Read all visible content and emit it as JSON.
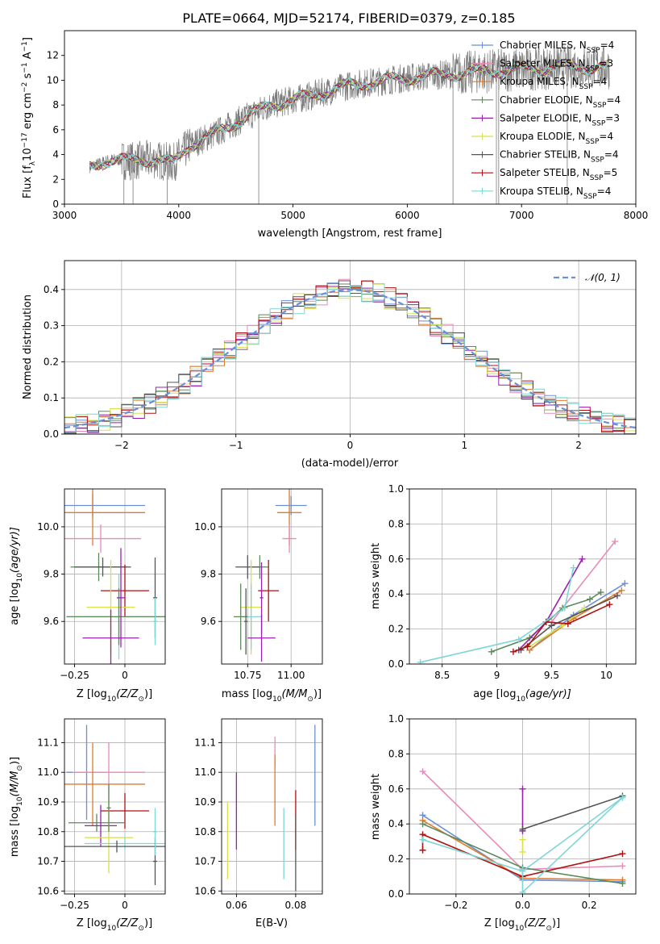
{
  "title": "PLATE=0664, MJD=52174, FIBERID=0379, z=0.185",
  "colors": {
    "chabrier_miles": "#6a8fd8",
    "salpeter_miles": "#e98ab8",
    "kroupa_miles": "#e07b2a",
    "chabrier_elodie": "#5a8a5a",
    "salpeter_elodie": "#9b1fae",
    "kroupa_elodie": "#d8e04a",
    "chabrier_stelib": "#555555",
    "salpeter_stelib": "#b01010",
    "kroupa_stelib": "#7fd6d6"
  },
  "chart_data": [
    {
      "id": "spectrum",
      "type": "line",
      "xlabel": "wavelength [Angstrom, rest frame]",
      "ylabel": "Flux [f",
      "ylabel_sub": "λ",
      "ylabel_rest": "10",
      "ylabel_exp": "−17",
      "ylabel_end": " erg cm",
      "ylabel_e2": "−2",
      "ylabel_s": " s",
      "ylabel_e1": "−1",
      "ylabel_a": " A",
      "ylabel_e3": "−1",
      "ylabel_close": "]",
      "xlim": [
        3000,
        8000
      ],
      "ylim": [
        0,
        14
      ],
      "xticks": [
        3000,
        4000,
        5000,
        6000,
        7000,
        8000
      ],
      "yticks": [
        0,
        2,
        4,
        6,
        8,
        10,
        12
      ],
      "data_range": [
        3220,
        7770
      ],
      "legend_position": "upper-right",
      "legend": [
        {
          "base": "Chabrier MILES, N",
          "sub": "SSP",
          "tail": "=4",
          "color_key": "chabrier_miles"
        },
        {
          "base": "Salpeter MILES, N",
          "sub": "SSP",
          "tail": "=3",
          "color_key": "salpeter_miles"
        },
        {
          "base": "Kroupa MILES, N",
          "sub": "SSP",
          "tail": "=4",
          "color_key": "kroupa_miles"
        },
        {
          "base": "Chabrier ELODIE, N",
          "sub": "SSP",
          "tail": "=4",
          "color_key": "chabrier_elodie"
        },
        {
          "base": "Salpeter ELODIE, N",
          "sub": "SSP",
          "tail": "=3",
          "color_key": "salpeter_elodie"
        },
        {
          "base": "Kroupa ELODIE, N",
          "sub": "SSP",
          "tail": "=4",
          "color_key": "kroupa_elodie"
        },
        {
          "base": "Chabrier STELIB, N",
          "sub": "SSP",
          "tail": "=4",
          "color_key": "chabrier_stelib"
        },
        {
          "base": "Salpeter STELIB, N",
          "sub": "SSP",
          "tail": "=5",
          "color_key": "salpeter_stelib"
        },
        {
          "base": "Kroupa STELIB, N",
          "sub": "SSP",
          "tail": "=4",
          "color_key": "kroupa_stelib"
        }
      ],
      "continuum_x": [
        3220,
        3400,
        3600,
        3800,
        3950,
        4100,
        4300,
        4500,
        4800,
        5100,
        5500,
        6000,
        6500,
        7000,
        7500,
        7770
      ],
      "continuum_y": [
        3.0,
        3.6,
        3.5,
        3.6,
        3.3,
        4.8,
        5.6,
        6.6,
        8.0,
        8.6,
        9.6,
        10.2,
        10.6,
        10.9,
        11.1,
        11.0
      ],
      "gap_x": [
        3520,
        3600,
        3900,
        4700,
        6400,
        6780,
        6800,
        7400
      ]
    },
    {
      "id": "residuals",
      "type": "histogram",
      "xlabel": "(data-model)/error",
      "ylabel": "Normed distribution",
      "xlim": [
        -2.5,
        2.5
      ],
      "ylim": [
        0,
        0.48
      ],
      "xticks": [
        -2,
        -1,
        0,
        1,
        2
      ],
      "yticks": [
        0.0,
        0.1,
        0.2,
        0.3,
        0.4
      ],
      "bin_width": 0.1,
      "legend_label": "𝒩(0, 1)",
      "legend_position": "upper-right",
      "grid": true
    },
    {
      "id": "age_vs_Z",
      "type": "errorbar",
      "xlabel": "Z [log",
      "xlabel_sub": "10",
      "xlabel_tail": "(Z/Z",
      "xlabel_sun": "⊙",
      "xlabel_close": ")]",
      "ylabel": "age  [log",
      "ylabel_sub": "10",
      "ylabel_tail": "(age/yr)]",
      "xlim": [
        -0.3,
        0.2
      ],
      "ylim": [
        9.42,
        10.16
      ],
      "xticks": [
        -0.25,
        0.0
      ],
      "yticks": [
        9.6,
        9.8,
        10.0
      ],
      "points": [
        {
          "color_key": "chabrier_miles",
          "x": -0.16,
          "xerr": 0.26,
          "y": 10.09,
          "yerr": 0.05
        },
        {
          "color_key": "kroupa_miles",
          "x": -0.16,
          "xerr": 0.26,
          "y": 10.06,
          "yerr": 0.14
        },
        {
          "color_key": "salpeter_miles",
          "x": -0.12,
          "xerr": 0.2,
          "y": 9.95,
          "yerr": 0.06
        },
        {
          "color_key": "chabrier_elodie",
          "x": -0.13,
          "xerr": 0.14,
          "y": 9.83,
          "yerr": 0.06
        },
        {
          "color_key": "chabrier_stelib",
          "x": -0.11,
          "xerr": 0.14,
          "y": 9.83,
          "yerr": 0.04
        },
        {
          "color_key": "salpeter_stelib",
          "x": 0.0,
          "xerr": 0.12,
          "y": 9.73,
          "yerr": 0.11
        },
        {
          "color_key": "kroupa_elodie",
          "x": -0.07,
          "xerr": 0.12,
          "y": 9.66,
          "yerr": 0.2
        },
        {
          "color_key": "kroupa_stelib",
          "x": -0.03,
          "xerr": 0.26,
          "y": 9.62,
          "yerr": 0.18
        },
        {
          "color_key": "chabrier_elodie",
          "x": -0.03,
          "xerr": 0.26,
          "y": 9.62,
          "yerr": 0.12
        },
        {
          "color_key": "salpeter_elodie",
          "x": -0.07,
          "xerr": 0.14,
          "y": 9.53,
          "yerr": 0.12
        },
        {
          "color_key": "salpeter_elodie",
          "x": -0.02,
          "xerr": 0.02,
          "y": 9.7,
          "yerr": 0.21
        },
        {
          "color_key": "chabrier_stelib",
          "x": 0.15,
          "xerr": 0.01,
          "y": 9.7,
          "yerr": 0.17
        },
        {
          "color_key": "kroupa_stelib",
          "x": 0.15,
          "xerr": 0.01,
          "y": 9.6,
          "yerr": 0.1
        }
      ]
    },
    {
      "id": "age_vs_mass",
      "type": "errorbar",
      "xlabel": "mass [log",
      "xlabel_sub": "10",
      "xlabel_tail": "(M/M",
      "xlabel_sun": "⊙",
      "xlabel_close": ")]",
      "xlim": [
        10.6,
        11.18
      ],
      "ylim": [
        9.42,
        10.16
      ],
      "xticks": [
        10.75,
        11.0
      ],
      "xtick_labels": [
        "10.75",
        "11.00"
      ],
      "yticks": [
        9.6,
        9.8,
        10.0
      ],
      "points": [
        {
          "color_key": "chabrier_miles",
          "x": 11.0,
          "xerr": 0.09,
          "y": 10.09,
          "yerr": 0.04
        },
        {
          "color_key": "kroupa_miles",
          "x": 10.99,
          "xerr": 0.07,
          "y": 10.06,
          "yerr": 0.14
        },
        {
          "color_key": "salpeter_miles",
          "x": 10.99,
          "xerr": 0.04,
          "y": 9.95,
          "yerr": 0.06
        },
        {
          "color_key": "chabrier_elodie",
          "x": 10.82,
          "xerr": 0.05,
          "y": 9.83,
          "yerr": 0.05
        },
        {
          "color_key": "chabrier_stelib",
          "x": 10.75,
          "xerr": 0.07,
          "y": 9.83,
          "yerr": 0.05
        },
        {
          "color_key": "salpeter_stelib",
          "x": 10.87,
          "xerr": 0.06,
          "y": 9.73,
          "yerr": 0.13
        },
        {
          "color_key": "kroupa_elodie",
          "x": 10.77,
          "xerr": 0.06,
          "y": 9.66,
          "yerr": 0.2
        },
        {
          "color_key": "kroupa_stelib",
          "x": 10.77,
          "xerr": 0.06,
          "y": 9.62,
          "yerr": 0.14
        },
        {
          "color_key": "chabrier_elodie",
          "x": 10.71,
          "xerr": 0.04,
          "y": 9.62,
          "yerr": 0.14
        },
        {
          "color_key": "salpeter_elodie",
          "x": 10.83,
          "xerr": 0.08,
          "y": 9.53,
          "yerr": 0.1
        },
        {
          "color_key": "salpeter_elodie",
          "x": 10.83,
          "xerr": 0.01,
          "y": 9.7,
          "yerr": 0.15
        },
        {
          "color_key": "chabrier_stelib",
          "x": 10.74,
          "xerr": 0.01,
          "y": 9.6,
          "yerr": 0.14
        }
      ]
    },
    {
      "id": "massweight_vs_age",
      "type": "line",
      "xlabel": "age  [log",
      "xlabel_sub": "10",
      "xlabel_tail": "(age/yr)]",
      "ylabel": "mass weight",
      "xlim": [
        8.2,
        10.27
      ],
      "ylim": [
        0,
        1
      ],
      "xticks": [
        8.5,
        9.0,
        9.5,
        10.0
      ],
      "yticks": [
        0.0,
        0.2,
        0.4,
        0.6,
        0.8,
        1.0
      ],
      "grid": true,
      "series": [
        {
          "color_key": "chabrier_miles",
          "x": [
            9.3,
            9.7,
            10.17
          ],
          "y": [
            0.08,
            0.28,
            0.46
          ]
        },
        {
          "color_key": "salpeter_miles",
          "x": [
            9.5,
            10.08
          ],
          "y": [
            0.24,
            0.7
          ]
        },
        {
          "color_key": "kroupa_miles",
          "x": [
            9.3,
            9.7,
            10.14
          ],
          "y": [
            0.08,
            0.26,
            0.42
          ]
        },
        {
          "color_key": "chabrier_elodie",
          "x": [
            8.95,
            9.3,
            9.6,
            9.85,
            9.95
          ],
          "y": [
            0.07,
            0.15,
            0.32,
            0.37,
            0.41
          ]
        },
        {
          "color_key": "salpeter_elodie",
          "x": [
            9.2,
            9.45,
            9.78
          ],
          "y": [
            0.08,
            0.24,
            0.6
          ]
        },
        {
          "color_key": "kroupa_elodie",
          "x": [
            9.3,
            9.6,
            9.8
          ],
          "y": [
            0.1,
            0.22,
            0.32
          ]
        },
        {
          "color_key": "chabrier_stelib",
          "x": [
            9.22,
            9.5,
            10.1
          ],
          "y": [
            0.08,
            0.22,
            0.39
          ]
        },
        {
          "color_key": "salpeter_stelib",
          "x": [
            9.15,
            9.28,
            9.45,
            9.65,
            10.03
          ],
          "y": [
            0.07,
            0.1,
            0.24,
            0.23,
            0.34
          ]
        },
        {
          "color_key": "kroupa_stelib",
          "x": [
            8.3,
            9.2,
            9.62,
            9.7
          ],
          "y": [
            0.01,
            0.14,
            0.32,
            0.55
          ]
        }
      ]
    },
    {
      "id": "mass_vs_Z",
      "type": "errorbar",
      "xlabel": "Z [log",
      "xlabel_sub": "10",
      "xlabel_tail": "(Z/Z",
      "xlabel_sun": "⊙",
      "xlabel_close": ")]",
      "ylabel": "mass [log",
      "ylabel_sub": "10",
      "ylabel_tail": "(M/M",
      "ylabel_sun": "⊙",
      "ylabel_close": ")]",
      "xlim": [
        -0.3,
        0.2
      ],
      "ylim": [
        10.59,
        11.18
      ],
      "xticks": [
        -0.25,
        0.0
      ],
      "yticks": [
        10.6,
        10.7,
        10.8,
        10.9,
        11.0,
        11.1
      ],
      "points": [
        {
          "color_key": "chabrier_miles",
          "x": -0.19,
          "xerr": 0.1,
          "y": 11.0,
          "yerr": 0.16
        },
        {
          "color_key": "salpeter_miles",
          "x": -0.08,
          "xerr": 0.18,
          "y": 11.0,
          "yerr": 0.1
        },
        {
          "color_key": "kroupa_miles",
          "x": -0.16,
          "xerr": 0.26,
          "y": 10.96,
          "yerr": 0.14
        },
        {
          "color_key": "salpeter_stelib",
          "x": 0.0,
          "xerr": 0.12,
          "y": 10.87,
          "yerr": 0.06
        },
        {
          "color_key": "chabrier_elodie",
          "x": -0.14,
          "xerr": 0.14,
          "y": 10.83,
          "yerr": 0.03
        },
        {
          "color_key": "salpeter_elodie",
          "x": -0.12,
          "xerr": 0.08,
          "y": 10.82,
          "yerr": 0.07
        },
        {
          "color_key": "kroupa_elodie",
          "x": -0.08,
          "xerr": 0.12,
          "y": 10.78,
          "yerr": 0.12
        },
        {
          "color_key": "kroupa_stelib",
          "x": 0.0,
          "xerr": 0.2,
          "y": 10.76,
          "yerr": 0.02
        },
        {
          "color_key": "chabrier_stelib",
          "x": -0.04,
          "xerr": 0.26,
          "y": 10.75,
          "yerr": 0.02
        },
        {
          "color_key": "chabrier_stelib",
          "x": 0.15,
          "xerr": 0.01,
          "y": 10.7,
          "yerr": 0.08
        },
        {
          "color_key": "kroupa_stelib",
          "x": 0.15,
          "xerr": 0.01,
          "y": 10.8,
          "yerr": 0.08
        },
        {
          "color_key": "chabrier_elodie",
          "x": -0.08,
          "xerr": 0.01,
          "y": 10.88,
          "yerr": 0.08
        }
      ]
    },
    {
      "id": "mass_vs_ebv",
      "type": "errorbar",
      "xlabel": "E(B-V)",
      "xlim": [
        0.055,
        0.089
      ],
      "ylim": [
        10.59,
        11.18
      ],
      "xticks": [
        0.06,
        0.08
      ],
      "xtick_labels": [
        "0.06",
        "0.08"
      ],
      "yticks": [
        10.6,
        10.7,
        10.8,
        10.9,
        11.0,
        11.1
      ],
      "points": [
        {
          "color_key": "kroupa_elodie",
          "x": 0.057,
          "yerr": 0.13,
          "y": 10.77
        },
        {
          "color_key": "salpeter_elodie",
          "x": 0.06,
          "yerr": 0.13,
          "y": 10.87
        },
        {
          "color_key": "salpeter_miles",
          "x": 0.073,
          "yerr": 0.05,
          "y": 11.07
        },
        {
          "color_key": "kroupa_miles",
          "x": 0.073,
          "yerr": 0.12,
          "y": 10.94
        },
        {
          "color_key": "kroupa_stelib",
          "x": 0.076,
          "yerr": 0.12,
          "y": 10.76
        },
        {
          "color_key": "salpeter_stelib",
          "x": 0.08,
          "yerr": 0.1,
          "y": 10.84
        },
        {
          "color_key": "chabrier_stelib",
          "x": 0.08,
          "yerr": 0.13,
          "y": 10.73
        },
        {
          "color_key": "chabrier_miles",
          "x": 0.0865,
          "yerr": 0.17,
          "y": 10.99
        }
      ]
    },
    {
      "id": "massweight_vs_Z",
      "type": "line",
      "xlabel": "Z [log",
      "xlabel_sub": "10",
      "xlabel_tail": "(Z/Z",
      "xlabel_sun": "⊙",
      "xlabel_close": ")]",
      "ylabel": "mass weight",
      "xlim": [
        -0.34,
        0.34
      ],
      "ylim": [
        0,
        1
      ],
      "xticks": [
        -0.2,
        0.0,
        0.2
      ],
      "xtick_labels": [
        "−0.2",
        "0.0",
        "0.2"
      ],
      "yticks": [
        0.0,
        0.2,
        0.4,
        0.6,
        0.8,
        1.0
      ],
      "grid": true,
      "series": [
        {
          "color_key": "salpeter_miles",
          "x": [
            -0.3,
            0.0,
            0.3
          ],
          "y": [
            0.7,
            0.14,
            0.16
          ]
        },
        {
          "color_key": "chabrier_miles",
          "x": [
            -0.3,
            0.0,
            0.3
          ],
          "y": [
            0.45,
            0.08,
            0.07
          ]
        },
        {
          "color_key": "kroupa_miles",
          "x": [
            -0.3,
            0.0,
            0.3
          ],
          "y": [
            0.42,
            0.09,
            0.08
          ]
        },
        {
          "color_key": "chabrier_elodie",
          "x": [
            -0.3,
            0.0,
            0.3
          ],
          "y": [
            0.4,
            0.15,
            0.06
          ]
        },
        {
          "color_key": "salpeter_elodie",
          "x": [
            0.0,
            0.0
          ],
          "y": [
            0.6,
            0.36
          ]
        },
        {
          "color_key": "kroupa_elodie",
          "x": [
            0.0,
            0.0
          ],
          "y": [
            0.31,
            0.24
          ]
        },
        {
          "color_key": "chabrier_stelib",
          "x": [
            0.0,
            0.3
          ],
          "y": [
            0.37,
            0.56
          ]
        },
        {
          "color_key": "salpeter_stelib",
          "x": [
            -0.3,
            -0.3,
            0.0,
            0.3
          ],
          "y": [
            0.25,
            0.34,
            0.1,
            0.23
          ]
        },
        {
          "color_key": "kroupa_stelib",
          "x": [
            -0.3,
            0.0,
            0.3
          ],
          "y": [
            0.31,
            0.13,
            0.55
          ]
        },
        {
          "color_key": "kroupa_stelib",
          "x": [
            0.0,
            0.0,
            0.3
          ],
          "y": [
            0.14,
            0.01,
            0.55
          ]
        }
      ]
    }
  ]
}
